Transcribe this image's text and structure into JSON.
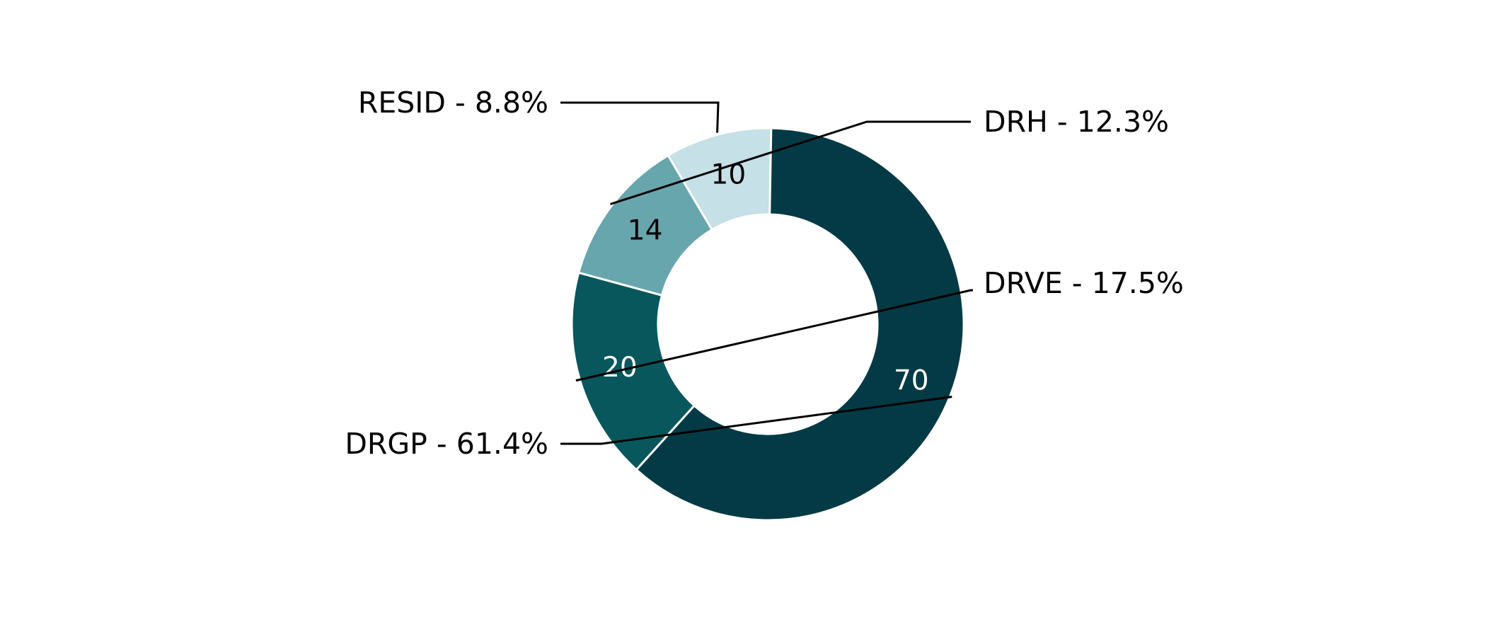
{
  "chart_data": {
    "type": "pie",
    "variant": "donut",
    "title": "",
    "legend": "none",
    "slices": [
      {
        "label": "RESID",
        "value": 10,
        "percent_label": "RESID - 8.8%",
        "color": "#c5e0e6",
        "value_color": "#000000"
      },
      {
        "label": "DRH",
        "value": 14,
        "percent_label": "DRH - 12.3%",
        "color": "#68a6ae",
        "value_color": "#000000"
      },
      {
        "label": "DRVE",
        "value": 20,
        "percent_label": "DRVE - 17.5%",
        "color": "#08575c",
        "value_color": "#ffffff"
      },
      {
        "label": "DRGP",
        "value": 70,
        "percent_label": "DRGP - 61.4%",
        "color": "#033a45",
        "value_color": "#ffffff"
      }
    ]
  }
}
